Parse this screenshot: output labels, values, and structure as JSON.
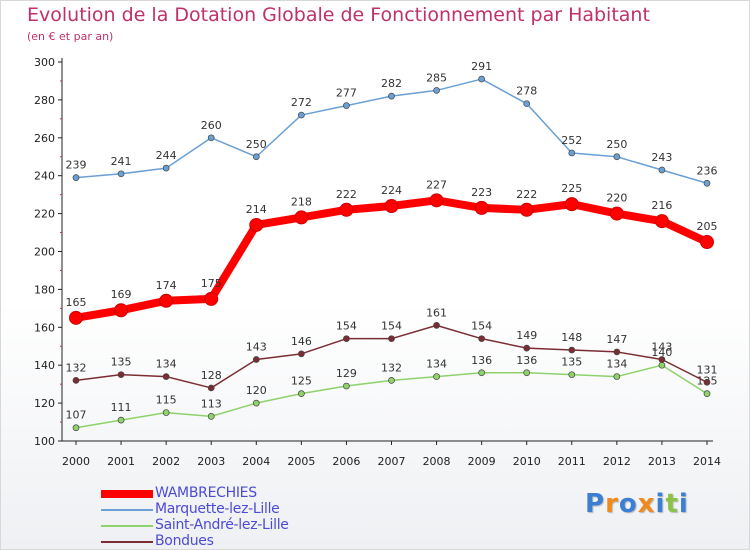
{
  "chart_data": {
    "type": "line",
    "title": "Evolution de la Dotation Globale de Fonctionnement par Habitant",
    "subtitle": "(en € et par an)",
    "x": [
      "2000",
      "2001",
      "2002",
      "2003",
      "2004",
      "2005",
      "2006",
      "2007",
      "2008",
      "2009",
      "2010",
      "2011",
      "2012",
      "2013",
      "2014"
    ],
    "yticks": [
      "100",
      "120",
      "140",
      "160",
      "180",
      "200",
      "220",
      "240",
      "260",
      "280",
      "300"
    ],
    "ylim": [
      100,
      300
    ],
    "grid": false,
    "legend_position": "bottom-left",
    "series": [
      {
        "name": "WAMBRECHIES",
        "color": "#ff0000",
        "emphasis": true,
        "values": [
          165,
          169,
          174,
          175,
          214,
          218,
          222,
          224,
          227,
          223,
          222,
          225,
          220,
          216,
          205
        ]
      },
      {
        "name": "Marquette-lez-Lille",
        "color": "#6aa0d3",
        "emphasis": false,
        "values": [
          239,
          241,
          244,
          260,
          250,
          272,
          277,
          282,
          285,
          291,
          278,
          252,
          250,
          243,
          236
        ]
      },
      {
        "name": "Saint-André-lez-Lille",
        "color": "#8fd16a",
        "emphasis": false,
        "values": [
          107,
          111,
          115,
          113,
          120,
          125,
          129,
          132,
          134,
          136,
          136,
          135,
          134,
          140,
          125
        ]
      },
      {
        "name": "Bondues",
        "color": "#7a2e33",
        "emphasis": false,
        "values": [
          132,
          135,
          134,
          128,
          143,
          146,
          154,
          154,
          161,
          154,
          149,
          148,
          147,
          143,
          131
        ]
      }
    ]
  },
  "logo": {
    "text": "Proxiti",
    "letters": [
      "P",
      "r",
      "o",
      "x",
      "i",
      "t",
      "i"
    ],
    "colors": [
      "#3b7fd4",
      "#f08a1c",
      "#3b7fd4",
      "#f08a1c",
      "#3b7fd4",
      "#8bc34a",
      "#3b7fd4"
    ]
  }
}
